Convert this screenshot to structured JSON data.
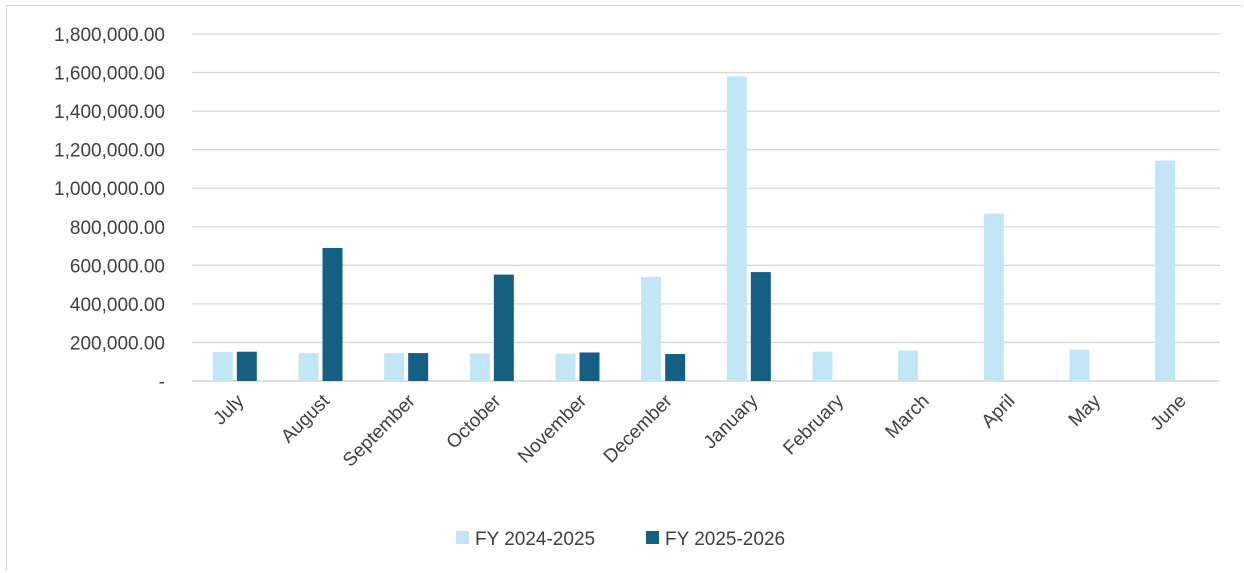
{
  "chart_data": {
    "type": "bar",
    "title": "",
    "xlabel": "",
    "ylabel": "",
    "ylim": [
      0,
      1800000
    ],
    "y_ticks": [
      {
        "value": 0,
        "label": "-"
      },
      {
        "value": 200000,
        "label": "200,000.00"
      },
      {
        "value": 400000,
        "label": "400,000.00"
      },
      {
        "value": 600000,
        "label": "600,000.00"
      },
      {
        "value": 800000,
        "label": "800,000.00"
      },
      {
        "value": 1000000,
        "label": "1,000,000.00"
      },
      {
        "value": 1200000,
        "label": "1,200,000.00"
      },
      {
        "value": 1400000,
        "label": "1,400,000.00"
      },
      {
        "value": 1600000,
        "label": "1,600,000.00"
      },
      {
        "value": 1800000,
        "label": "1,800,000.00"
      }
    ],
    "grid": true,
    "legend_position": "bottom",
    "categories": [
      "July",
      "August",
      "September",
      "October",
      "November",
      "December",
      "January",
      "February",
      "March",
      "April",
      "May",
      "June"
    ],
    "series": [
      {
        "name": "FY 2024-2025",
        "color": "#c2e6f5",
        "values": [
          150000,
          145000,
          145000,
          142000,
          142000,
          540000,
          1580000,
          152000,
          158000,
          868000,
          163000,
          1143000
        ]
      },
      {
        "name": "FY 2025-2026",
        "color": "#156082",
        "values": [
          152000,
          690000,
          145000,
          552000,
          148000,
          140000,
          565000,
          null,
          null,
          null,
          null,
          null
        ]
      }
    ]
  }
}
